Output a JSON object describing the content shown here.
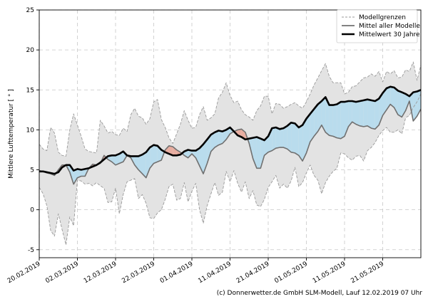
{
  "chart_data": {
    "type": "line",
    "title": "",
    "xlabel": "",
    "ylabel": "Mittlere Lufttemperatur [ ° ]",
    "ylim": [
      -6,
      25
    ],
    "y_ticks": [
      -5,
      0,
      5,
      10,
      15,
      20,
      25
    ],
    "x_ticks": [
      {
        "day": 0,
        "label": "20.02.2019"
      },
      {
        "day": 10,
        "label": "02.03.2019"
      },
      {
        "day": 20,
        "label": "12.03.2019"
      },
      {
        "day": 30,
        "label": "22.03.2019"
      },
      {
        "day": 40,
        "label": "01.04.2019"
      },
      {
        "day": 50,
        "label": "11.04.2019"
      },
      {
        "day": 60,
        "label": "21.04.2019"
      },
      {
        "day": 70,
        "label": "01.05.2019"
      },
      {
        "day": 80,
        "label": "11.05.2019"
      },
      {
        "day": 90,
        "label": "21.05.2019"
      }
    ],
    "xlim": [
      0,
      100
    ],
    "grid": true,
    "legend_position": "top-right",
    "legend": [
      "Modellgrenzen",
      "Mittel aller Modelle",
      "Mittelwert 30 Jahre"
    ],
    "colors": {
      "envelope_fill": "#e3e3e3",
      "envelope_line": "#9a9a9a",
      "models_mean": "#707070",
      "climate_mean": "#000000",
      "warm_fill": "#e8ada0",
      "cold_fill": "#b9dced",
      "grid": "#c8c8c8"
    },
    "series": [
      {
        "name": "Mittelwert 30 Jahre",
        "key": "climate",
        "values": [
          4.8,
          4.8,
          4.7,
          4.6,
          4.5,
          4.7,
          5.3,
          5.6,
          5.6,
          4.9,
          5.1,
          5.0,
          5.1,
          5.2,
          5.4,
          5.6,
          5.9,
          6.3,
          6.7,
          6.8,
          6.8,
          7.0,
          7.3,
          6.8,
          6.7,
          6.7,
          6.7,
          6.9,
          7.2,
          7.8,
          8.1,
          8.0,
          7.5,
          7.2,
          7.0,
          6.8,
          6.8,
          6.9,
          7.3,
          7.5,
          7.4,
          7.4,
          7.7,
          8.2,
          8.8,
          9.4,
          9.7,
          9.9,
          9.8,
          10.0,
          10.3,
          9.8,
          9.3,
          9.1,
          8.8,
          8.9,
          9.0,
          9.1,
          8.9,
          8.7,
          9.2,
          10.2,
          10.3,
          10.1,
          10.2,
          10.5,
          10.9,
          10.8,
          10.3,
          10.6,
          11.4,
          12.0,
          12.6,
          13.2,
          13.6,
          14.1,
          13.1,
          13.1,
          13.2,
          13.5,
          13.5,
          13.6,
          13.6,
          13.5,
          13.6,
          13.7,
          13.8,
          13.7,
          13.6,
          13.9,
          14.6,
          15.2,
          15.4,
          15.3,
          14.9,
          14.7,
          14.5,
          14.2,
          14.7,
          14.8,
          15.0
        ]
      },
      {
        "name": "Mittel aller Modelle",
        "key": "models",
        "values": [
          4.9,
          4.8,
          4.6,
          4.5,
          4.3,
          5.0,
          5.6,
          5.6,
          4.7,
          3.2,
          4.0,
          4.2,
          4.2,
          5.2,
          5.7,
          5.6,
          5.8,
          6.8,
          6.3,
          6.0,
          5.6,
          5.8,
          6.0,
          6.8,
          6.5,
          5.6,
          5.0,
          4.5,
          4.0,
          5.2,
          5.8,
          6.0,
          6.2,
          7.5,
          8.0,
          7.9,
          7.5,
          7.2,
          6.8,
          6.5,
          7.0,
          6.5,
          5.5,
          4.5,
          5.8,
          7.3,
          7.8,
          8.1,
          8.3,
          8.8,
          9.5,
          9.8,
          10.0,
          10.1,
          9.7,
          8.3,
          6.4,
          5.2,
          5.2,
          6.8,
          7.2,
          7.4,
          7.7,
          7.8,
          7.8,
          7.6,
          7.2,
          7.1,
          6.8,
          6.1,
          7.1,
          8.5,
          9.2,
          9.8,
          10.6,
          9.7,
          9.3,
          9.2,
          9.0,
          8.9,
          9.2,
          10.4,
          11.0,
          10.7,
          10.5,
          10.4,
          10.5,
          10.2,
          10.1,
          10.6,
          11.8,
          12.5,
          13.2,
          12.8,
          11.9,
          11.6,
          12.4,
          13.6,
          11.1,
          11.7,
          12.6
        ]
      },
      {
        "name": "Modellgrenzen (max)",
        "key": "upper",
        "values": [
          8.2,
          7.6,
          7.4,
          10.3,
          9.6,
          7.2,
          6.8,
          6.7,
          10.0,
          12.0,
          10.6,
          9.2,
          7.6,
          7.3,
          7.2,
          7.1,
          11.2,
          10.5,
          9.6,
          9.8,
          9.4,
          9.3,
          10.2,
          9.8,
          11.9,
          12.7,
          11.7,
          11.5,
          10.7,
          11.4,
          13.5,
          13.8,
          11.3,
          10.3,
          9.0,
          8.3,
          9.5,
          10.7,
          12.4,
          11.2,
          10.2,
          10.3,
          11.9,
          12.9,
          11.2,
          11.5,
          12.0,
          14.0,
          14.7,
          15.9,
          14.3,
          13.4,
          13.6,
          12.5,
          11.9,
          11.6,
          11.2,
          12.4,
          13.0,
          14.2,
          14.2,
          12.0,
          13.3,
          13.2,
          12.7,
          12.9,
          13.2,
          13.4,
          13.0,
          12.7,
          13.5,
          14.5,
          15.6,
          16.5,
          17.4,
          18.3,
          16.7,
          15.9,
          15.9,
          15.9,
          14.5,
          14.7,
          15.4,
          15.5,
          16.0,
          16.5,
          16.6,
          17.0,
          16.7,
          17.3,
          16.0,
          17.3,
          17.0,
          17.4,
          16.5,
          16.6,
          17.5,
          17.3,
          18.5,
          16.2,
          18.1
        ]
      },
      {
        "name": "Modellgrenzen (min)",
        "key": "lower",
        "values": [
          2.8,
          2.0,
          0.5,
          -2.6,
          -3.3,
          -0.5,
          -2.5,
          -4.4,
          -0.9,
          -2.0,
          3.7,
          3.6,
          3.2,
          3.3,
          3.0,
          3.4,
          3.0,
          2.7,
          0.9,
          1.0,
          2.7,
          -0.5,
          1.9,
          3.5,
          3.7,
          3.9,
          1.4,
          1.9,
          0.8,
          -1.0,
          -1.1,
          -0.4,
          0.0,
          1.3,
          2.9,
          3.2,
          1.2,
          1.4,
          3.4,
          1.0,
          2.3,
          3.3,
          0.0,
          -1.7,
          0.5,
          2.0,
          3.4,
          1.8,
          2.2,
          4.8,
          3.5,
          4.9,
          3.3,
          2.2,
          3.5,
          1.4,
          2.4,
          0.6,
          0.4,
          1.3,
          2.8,
          3.5,
          4.3,
          2.7,
          3.2,
          2.7,
          3.6,
          5.3,
          2.9,
          3.4,
          4.6,
          5.6,
          4.3,
          3.7,
          2.0,
          3.4,
          4.2,
          4.8,
          5.2,
          7.1,
          7.0,
          6.5,
          6.2,
          6.7,
          6.8,
          6.1,
          7.4,
          7.8,
          8.4,
          9.3,
          9.9,
          10.3,
          9.7,
          9.7,
          10.0,
          9.5,
          11.5,
          11.8,
          12.8,
          13.5,
          14.5
        ]
      }
    ],
    "credit": "(c) Donnerwetter.de GmbH SLM-Modell, Lauf 12.02.2019 07 Uhr"
  }
}
